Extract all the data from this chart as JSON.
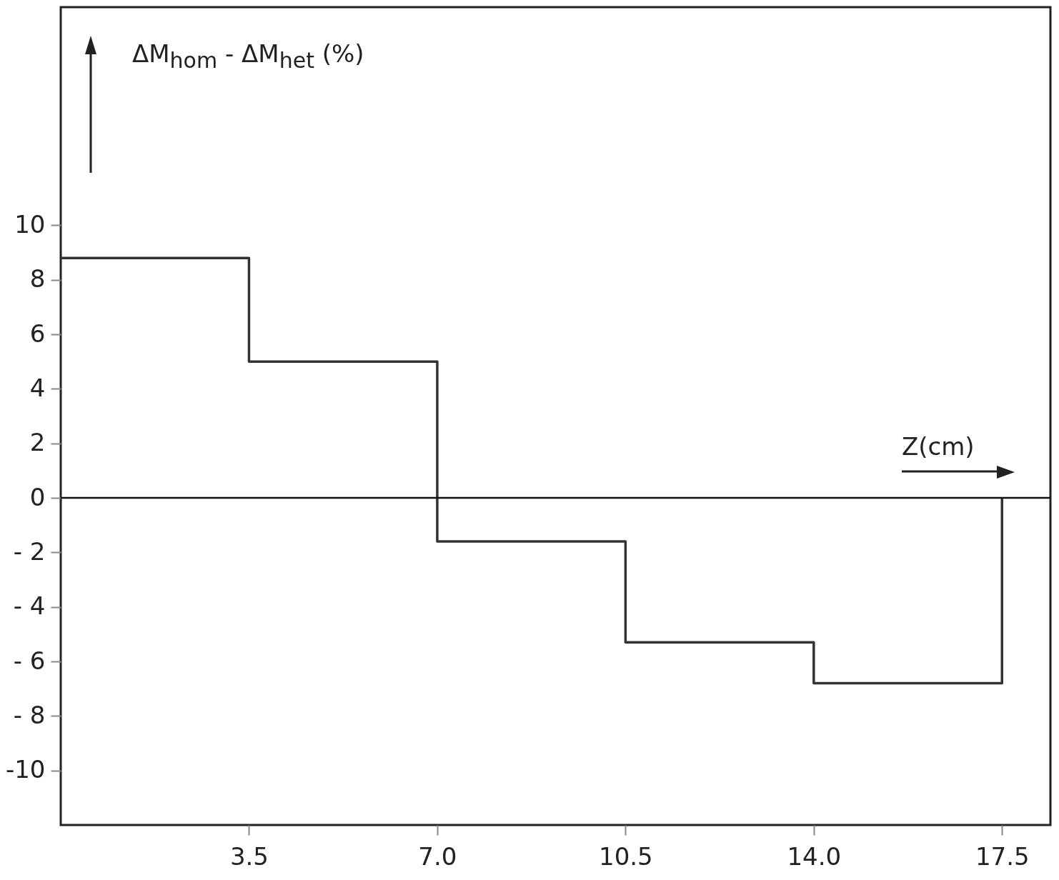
{
  "chart_data": {
    "type": "step",
    "ylabel": "ΔM$_{hom}$ - ΔM$_{het}$ (%)",
    "xlabel": "Z(cm)",
    "x": [
      0,
      3.5,
      7,
      10.5,
      14,
      17.5
    ],
    "values": [
      8.8,
      5.0,
      -1.6,
      -5.3,
      -6.8,
      0
    ],
    "color": "#333333",
    "xlim": [
      0,
      18.4
    ],
    "ylim": [
      -12,
      18
    ],
    "xticks": [
      3.5,
      {
        "value": 7,
        "label": "7.0"
      },
      10.5,
      {
        "value": 14,
        "label": "14.0"
      },
      17.5
    ],
    "yticks": [
      {
        "value": -10,
        "label": "-10"
      },
      {
        "value": -8,
        "label": "- 8"
      },
      {
        "value": -6,
        "label": "- 6"
      },
      {
        "value": -4,
        "label": "- 4"
      },
      {
        "value": -2,
        "label": "- 2"
      },
      0,
      2,
      4,
      6,
      8,
      10
    ],
    "ref_lines": [
      {
        "axis": "y",
        "value": 0,
        "color": "#111111"
      }
    ]
  }
}
